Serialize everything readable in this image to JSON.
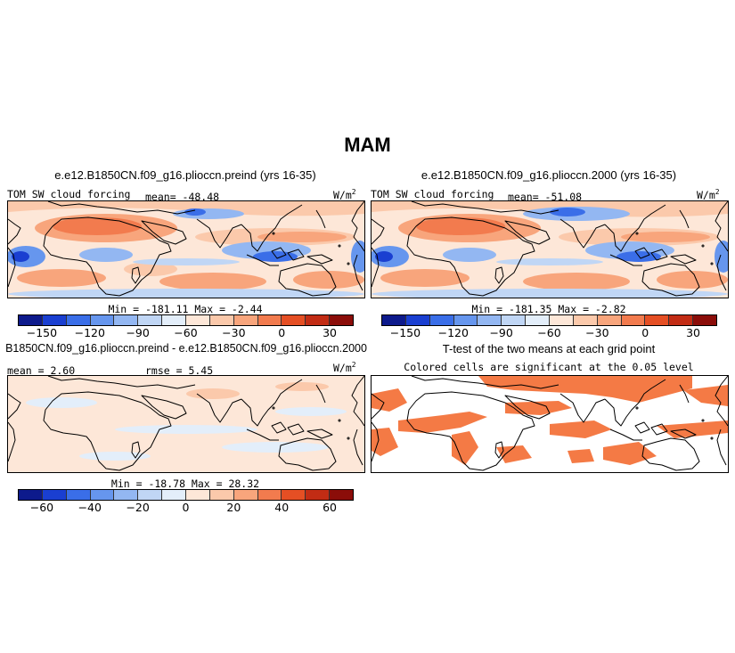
{
  "title": "MAM",
  "panels": {
    "p1": {
      "title": "e.e12.B1850CN.f09_g16.plioccn.preind (yrs 16-35)",
      "variable": "TOM SW cloud forcing",
      "mean": "mean= -48.48",
      "units_base": "W/m",
      "units_exp": "2",
      "minmax": "Min = -181.11 Max = -2.44"
    },
    "p2": {
      "title": "e.e12.B1850CN.f09_g16.plioccn.2000 (yrs 16-35)",
      "variable": "TOM SW cloud forcing",
      "mean": "mean= -51.08",
      "units_base": "W/m",
      "units_exp": "2",
      "minmax": "Min = -181.35 Max = -2.82"
    },
    "p3": {
      "title": "B1850CN.f09_g16.plioccn.preind - e.e12.B1850CN.f09_g16.plioccn.2000",
      "mean": "mean = 2.60",
      "rmse": "rmse = 5.45",
      "units_base": "W/m",
      "units_exp": "2",
      "minmax": "Min = -18.78 Max = 28.32"
    },
    "p4": {
      "title": "T-test of the two means at each grid point",
      "subtitle": "Colored cells are significant at the 0.05 level"
    }
  },
  "colorbar_abs": {
    "colors": [
      "#0d1a8c",
      "#1a3fd1",
      "#3a6ee8",
      "#6696ee",
      "#93b7f2",
      "#c0d6f5",
      "#e3eefa",
      "#fde7d8",
      "#fbc9ab",
      "#f8a57c",
      "#f27b4e",
      "#e54f24",
      "#c22c14",
      "#8b0d09"
    ],
    "ticks": [
      "-150",
      "-120",
      "-90",
      "-60",
      "-30",
      "0",
      "30"
    ]
  },
  "colorbar_diff": {
    "colors": [
      "#0d1a8c",
      "#1a3fd1",
      "#3a6ee8",
      "#6696ee",
      "#93b7f2",
      "#c0d6f5",
      "#e3eefa",
      "#fde7d8",
      "#fbc9ab",
      "#f8a57c",
      "#f27b4e",
      "#e54f24",
      "#c22c14",
      "#8b0d09"
    ],
    "ticks": [
      "-60",
      "-40",
      "-20",
      "0",
      "20",
      "40",
      "60"
    ]
  },
  "significance_color": "#f47a45"
}
